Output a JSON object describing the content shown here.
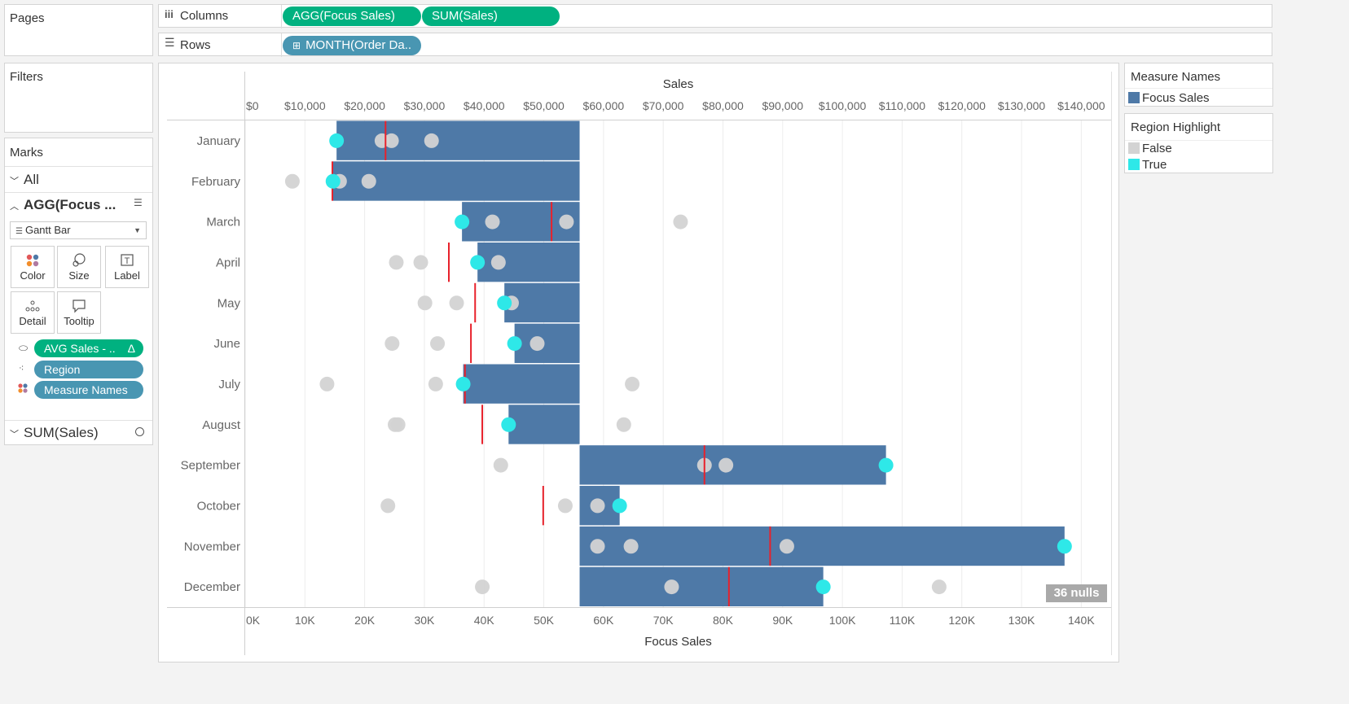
{
  "shelves": {
    "pages_label": "Pages",
    "columns_label": "Columns",
    "rows_label": "Rows",
    "columns_pills": [
      "AGG(Focus Sales)",
      "SUM(Sales)"
    ],
    "rows_pill": "MONTH(Order Da..",
    "filters_label": "Filters"
  },
  "marks": {
    "title": "Marks",
    "all_label": "All",
    "agg_label": "AGG(Focus ...",
    "mark_type": "Gantt Bar",
    "buttons": [
      "Color",
      "Size",
      "Label",
      "Detail",
      "Tooltip"
    ],
    "pills": [
      "AVG Sales - ..",
      "Region",
      "Measure Names"
    ],
    "pill_delta": "Δ",
    "sum_label": "SUM(Sales)"
  },
  "legend": {
    "measure_names_title": "Measure Names",
    "measure_names_items": [
      {
        "label": "Focus Sales",
        "color": "#4e79a7"
      }
    ],
    "region_title": "Region Highlight",
    "region_items": [
      {
        "label": "False",
        "color": "#d3d3d3"
      },
      {
        "label": "True",
        "color": "#2ee8e8"
      }
    ]
  },
  "nulls_badge": "36 nulls",
  "chart_data": {
    "type": "bar",
    "top_axis_title": "Sales",
    "bottom_axis_title": "Focus Sales",
    "top_ticks": [
      "$0",
      "$10,000",
      "$20,000",
      "$30,000",
      "$40,000",
      "$50,000",
      "$60,000",
      "$70,000",
      "$80,000",
      "$90,000",
      "$100,000",
      "$110,000",
      "$120,000",
      "$130,000",
      "$140,000"
    ],
    "bottom_ticks": [
      "0K",
      "10K",
      "20K",
      "30K",
      "40K",
      "50K",
      "60K",
      "70K",
      "80K",
      "90K",
      "100K",
      "110K",
      "120K",
      "130K",
      "140K"
    ],
    "xlim": [
      0,
      145000
    ],
    "baseline": 56000,
    "categories": [
      "January",
      "February",
      "March",
      "April",
      "May",
      "June",
      "July",
      "August",
      "September",
      "October",
      "November",
      "December"
    ],
    "focus_sales": [
      15300,
      14700,
      36300,
      38900,
      43400,
      45100,
      36500,
      44100,
      107300,
      62700,
      137200,
      96800
    ],
    "avg_sales": [
      23500,
      14600,
      51300,
      34100,
      38500,
      37800,
      36800,
      39700,
      76900,
      49900,
      87900,
      81000
    ],
    "other_regions": [
      [
        22900,
        24500,
        31200
      ],
      [
        7900,
        15800,
        20700
      ],
      [
        41400,
        53800,
        72900
      ],
      [
        25300,
        29400,
        42400
      ],
      [
        30100,
        35400,
        44600
      ],
      [
        24600,
        32200,
        48900
      ],
      [
        13700,
        31900,
        64800
      ],
      [
        25100,
        25600,
        63400
      ],
      [
        42800,
        76900,
        80500
      ],
      [
        23900,
        53600,
        59000
      ],
      [
        59000,
        64600,
        90700
      ],
      [
        39700,
        71400,
        116200
      ]
    ]
  }
}
